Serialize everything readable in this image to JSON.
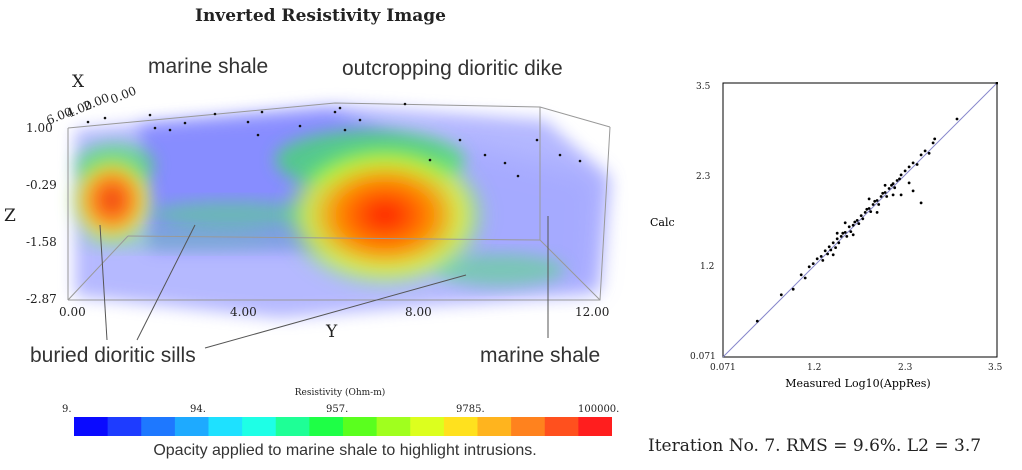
{
  "title": "Inverted Resistivity Image",
  "annotations": {
    "marine_shale_top": "marine shale",
    "outcropping_dike": "outcropping dioritic dike",
    "buried_sills": "buried dioritic sills",
    "marine_shale_bottom": "marine shale"
  },
  "axes3d": {
    "x_label": "X",
    "y_label": "Y",
    "z_label": "Z",
    "x_ticks": [
      "0.00",
      "2.00",
      "4.00",
      "6.00"
    ],
    "y_ticks": [
      "0.00",
      "4.00",
      "8.00",
      "12.00"
    ],
    "z_ticks": [
      "1.00",
      "-0.29",
      "-1.58",
      "-2.87"
    ]
  },
  "colorbar": {
    "title": "Resistivity (Ohm-m)",
    "ticks": [
      "9.",
      "94.",
      "957.",
      "9785.",
      "100000."
    ],
    "caption": "Opacity applied to marine shale to highlight intrusions.",
    "colors": [
      "#0a0aff",
      "#1e3cff",
      "#1e78ff",
      "#1eaaff",
      "#1ee1ff",
      "#1effe6",
      "#1eff96",
      "#1eff46",
      "#5aff1e",
      "#a0ff1e",
      "#dcff1e",
      "#ffe11e",
      "#ffb41e",
      "#ff821e",
      "#ff501e",
      "#ff1e1e"
    ]
  },
  "chart_data": {
    "type": "scatter",
    "title": "",
    "xlabel": "Measured Log10(AppRes)",
    "ylabel": "Calc",
    "x_ticks": [
      "0.071",
      "1.2",
      "2.3",
      "3.5"
    ],
    "y_ticks": [
      "0.071",
      "1.2",
      "2.3",
      "3.5"
    ],
    "xlim": [
      0.071,
      3.5
    ],
    "ylim": [
      0.071,
      3.5
    ],
    "reference_line": [
      [
        0.071,
        0.071
      ],
      [
        3.5,
        3.5
      ]
    ],
    "points": [
      [
        0.5,
        0.52
      ],
      [
        0.8,
        0.85
      ],
      [
        0.95,
        0.92
      ],
      [
        1.05,
        1.1
      ],
      [
        1.1,
        1.06
      ],
      [
        1.15,
        1.2
      ],
      [
        1.2,
        1.24
      ],
      [
        1.25,
        1.3
      ],
      [
        1.3,
        1.33
      ],
      [
        1.32,
        1.28
      ],
      [
        1.35,
        1.4
      ],
      [
        1.38,
        1.36
      ],
      [
        1.4,
        1.45
      ],
      [
        1.42,
        1.41
      ],
      [
        1.45,
        1.5
      ],
      [
        1.48,
        1.44
      ],
      [
        1.5,
        1.55
      ],
      [
        1.52,
        1.5
      ],
      [
        1.55,
        1.58
      ],
      [
        1.57,
        1.62
      ],
      [
        1.6,
        1.63
      ],
      [
        1.62,
        1.58
      ],
      [
        1.65,
        1.7
      ],
      [
        1.67,
        1.64
      ],
      [
        1.7,
        1.72
      ],
      [
        1.72,
        1.76
      ],
      [
        1.75,
        1.78
      ],
      [
        1.77,
        1.74
      ],
      [
        1.8,
        1.84
      ],
      [
        1.82,
        1.8
      ],
      [
        1.85,
        1.88
      ],
      [
        1.87,
        1.92
      ],
      [
        1.9,
        1.93
      ],
      [
        1.92,
        1.89
      ],
      [
        1.95,
        1.98
      ],
      [
        1.97,
        2.02
      ],
      [
        2.0,
        2.03
      ],
      [
        2.02,
        1.98
      ],
      [
        2.05,
        2.08
      ],
      [
        2.07,
        2.12
      ],
      [
        2.1,
        2.13
      ],
      [
        2.12,
        2.08
      ],
      [
        2.15,
        2.18
      ],
      [
        2.18,
        2.22
      ],
      [
        2.2,
        2.24
      ],
      [
        2.22,
        2.19
      ],
      [
        2.25,
        2.28
      ],
      [
        2.28,
        2.3
      ],
      [
        2.3,
        2.35
      ],
      [
        1.6,
        1.75
      ],
      [
        1.7,
        1.6
      ],
      [
        1.9,
        2.05
      ],
      [
        2.0,
        1.88
      ],
      [
        2.1,
        2.22
      ],
      [
        1.5,
        1.62
      ],
      [
        1.45,
        1.35
      ],
      [
        2.2,
        2.1
      ],
      [
        2.35,
        2.4
      ],
      [
        2.4,
        2.45
      ],
      [
        2.45,
        2.5
      ],
      [
        2.5,
        2.48
      ],
      [
        2.55,
        2.6
      ],
      [
        2.6,
        2.65
      ],
      [
        2.65,
        2.62
      ],
      [
        2.7,
        2.75
      ],
      [
        2.72,
        2.8
      ],
      [
        2.45,
        2.15
      ],
      [
        2.55,
        2.0
      ],
      [
        2.3,
        2.1
      ],
      [
        2.4,
        2.25
      ],
      [
        3.0,
        3.05
      ],
      [
        3.5,
        3.5
      ]
    ]
  },
  "iteration_text": "Iteration No. 7.  RMS = 9.6%.  L2 = 3.7"
}
